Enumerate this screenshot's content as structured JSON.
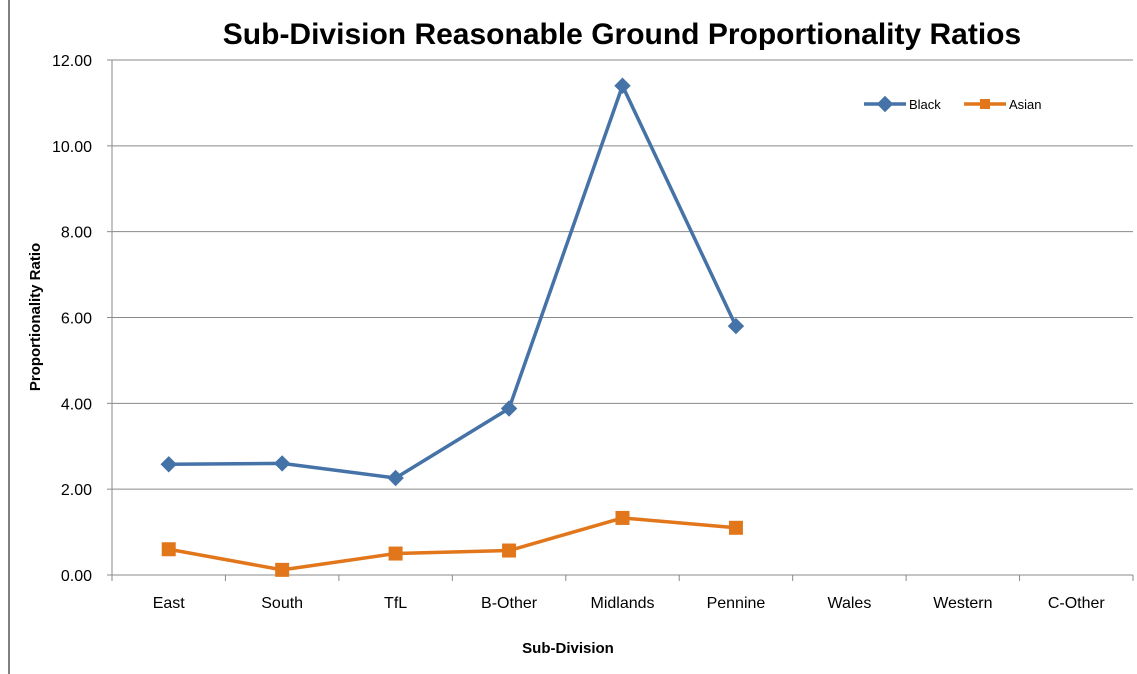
{
  "chart_data": {
    "type": "line",
    "title": "Sub-Division Reasonable Ground Proportionality Ratios",
    "xlabel": "Sub-Division",
    "ylabel": "Proportionality Ratio",
    "categories": [
      "East",
      "South",
      "TfL",
      "B-Other",
      "Midlands",
      "Pennine",
      "Wales",
      "Western",
      "C-Other"
    ],
    "ylim": [
      0,
      12
    ],
    "yticks": [
      "0.00",
      "2.00",
      "4.00",
      "6.00",
      "8.00",
      "10.00",
      "12.00"
    ],
    "grid": "horizontal",
    "legend_position": "top-right",
    "series": [
      {
        "name": "Black",
        "color": "#4572A7",
        "marker": "diamond",
        "values": [
          2.58,
          2.6,
          2.26,
          3.88,
          11.4,
          5.8,
          null,
          null,
          null
        ]
      },
      {
        "name": "Asian",
        "color": "#E2761B",
        "marker": "square",
        "values": [
          0.6,
          0.12,
          0.5,
          0.57,
          1.33,
          1.1,
          null,
          null,
          null
        ]
      }
    ]
  }
}
